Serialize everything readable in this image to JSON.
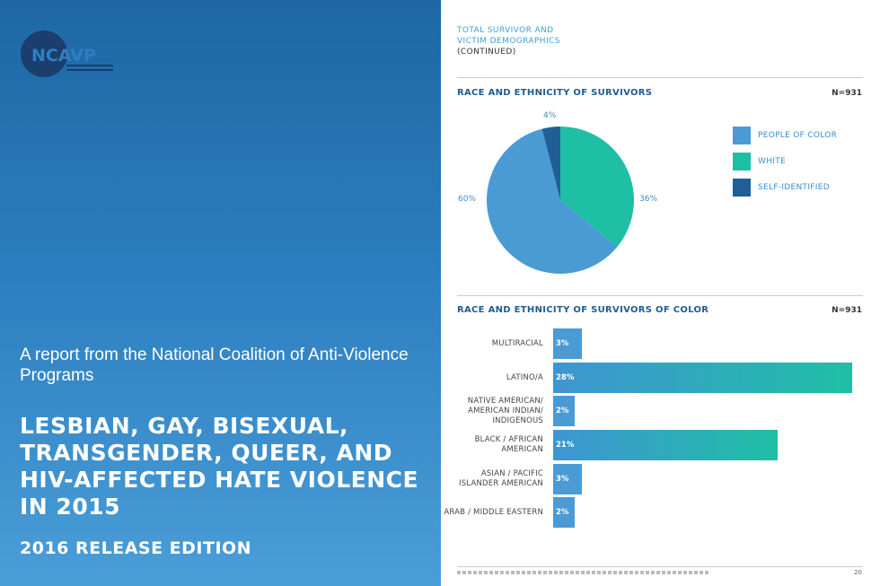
{
  "cover": {
    "logo_text": "NCAVP",
    "logo_tagline": "National Coalition of Anti-Violence Programs",
    "subtitle": "A report from the National Coalition of Anti-Violence Programs",
    "title": "LESBIAN, GAY, BISEXUAL, TRANSGENDER, QUEER, AND HIV-AFFECTED HATE VIOLENCE IN 2015",
    "edition": "2016 RELEASE EDITION"
  },
  "page": {
    "section_line1": "TOTAL SURVIVOR AND",
    "section_line2": "VICTIM DEMOGRAPHICS",
    "section_line3": "(CONTINUED)",
    "page_number": "20"
  },
  "colors": {
    "people_of_color": "#4a9bd4",
    "white": "#1fbfa5",
    "self_identified": "#1f5f96"
  },
  "chart_data": [
    {
      "type": "pie",
      "title": "RACE AND ETHNICITY OF SURVIVORS",
      "n_label": "N=931",
      "slices": [
        {
          "name": "WHITE",
          "value": 36,
          "label": "36%",
          "color": "#1fbfa5"
        },
        {
          "name": "PEOPLE OF COLOR",
          "value": 60,
          "label": "60%",
          "color": "#4a9bd4"
        },
        {
          "name": "SELF-IDENTIFIED",
          "value": 4,
          "label": "4%",
          "color": "#1f5f96"
        }
      ],
      "legend": [
        "PEOPLE OF COLOR",
        "WHITE",
        "SELF-IDENTIFIED"
      ],
      "legend_position": "right"
    },
    {
      "type": "bar",
      "orientation": "horizontal",
      "title": "RACE AND ETHNICITY OF SURVIVORS OF COLOR",
      "n_label": "N=931",
      "categories": [
        "MULTIRACIAL",
        "LATINO/A",
        "NATIVE AMERICAN/ AMERICAN INDIAN/ INDIGENOUS",
        "BLACK / AFRICAN AMERICAN",
        "ASIAN / PACIFIC ISLANDER AMERICAN",
        "ARAB / MIDDLE EASTERN"
      ],
      "values": [
        3,
        28,
        2,
        21,
        3,
        2
      ],
      "labels": [
        "3%",
        "28%",
        "2%",
        "21%",
        "3%",
        "2%"
      ]
    }
  ]
}
